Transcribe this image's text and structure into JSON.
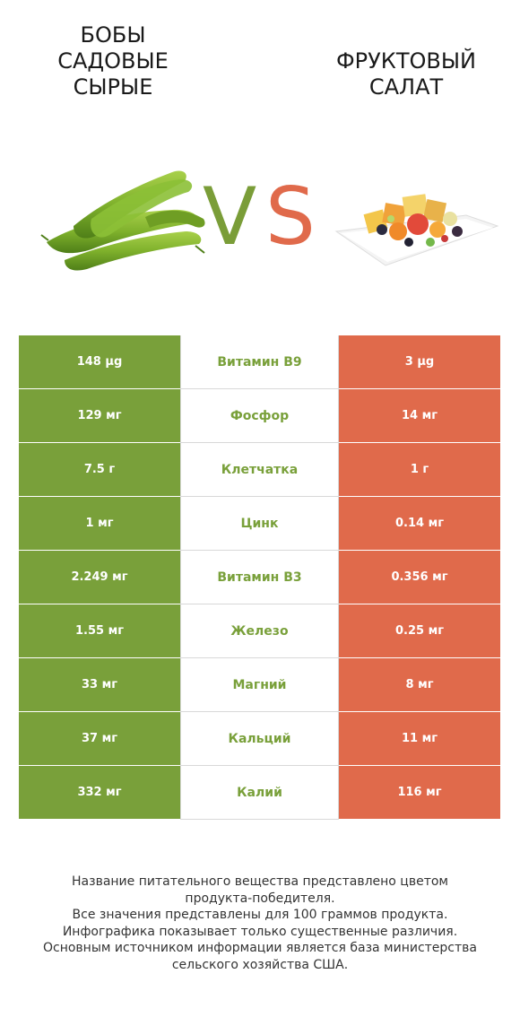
{
  "header": {
    "left_title_lines": [
      "БОБЫ",
      "САДОВЫЕ",
      "СЫРЫЕ"
    ],
    "right_title_lines": [
      "ФРУКТОВЫЙ",
      "САЛАТ"
    ],
    "vs_v": "V",
    "vs_s": "S"
  },
  "colors": {
    "left_product": "#79a03a",
    "right_product": "#e06a4b",
    "divider": "#d8d8d8"
  },
  "images": {
    "left": "fava-beans-illustration",
    "right": "fruit-salad-illustration"
  },
  "rows": [
    {
      "left": "148 µg",
      "nutrient": "Витамин B9",
      "right": "3 µg"
    },
    {
      "left": "129 мг",
      "nutrient": "Фосфор",
      "right": "14 мг"
    },
    {
      "left": "7.5 г",
      "nutrient": "Клетчатка",
      "right": "1 г"
    },
    {
      "left": "1 мг",
      "nutrient": "Цинк",
      "right": "0.14 мг"
    },
    {
      "left": "2.249 мг",
      "nutrient": "Витамин B3",
      "right": "0.356 мг"
    },
    {
      "left": "1.55 мг",
      "nutrient": "Железо",
      "right": "0.25 мг"
    },
    {
      "left": "33 мг",
      "nutrient": "Магний",
      "right": "8 мг"
    },
    {
      "left": "37 мг",
      "nutrient": "Кальций",
      "right": "11 мг"
    },
    {
      "left": "332 мг",
      "nutrient": "Калий",
      "right": "116 мг"
    }
  ],
  "footer": {
    "lines": [
      "Название питательного вещества представлено цветом",
      "продукта-победителя.",
      "Все значения представлены для 100 граммов продукта.",
      "Инфографика показывает только существенные различия.",
      "Основным источником информации является база министерства",
      "сельского хозяйства США."
    ]
  }
}
